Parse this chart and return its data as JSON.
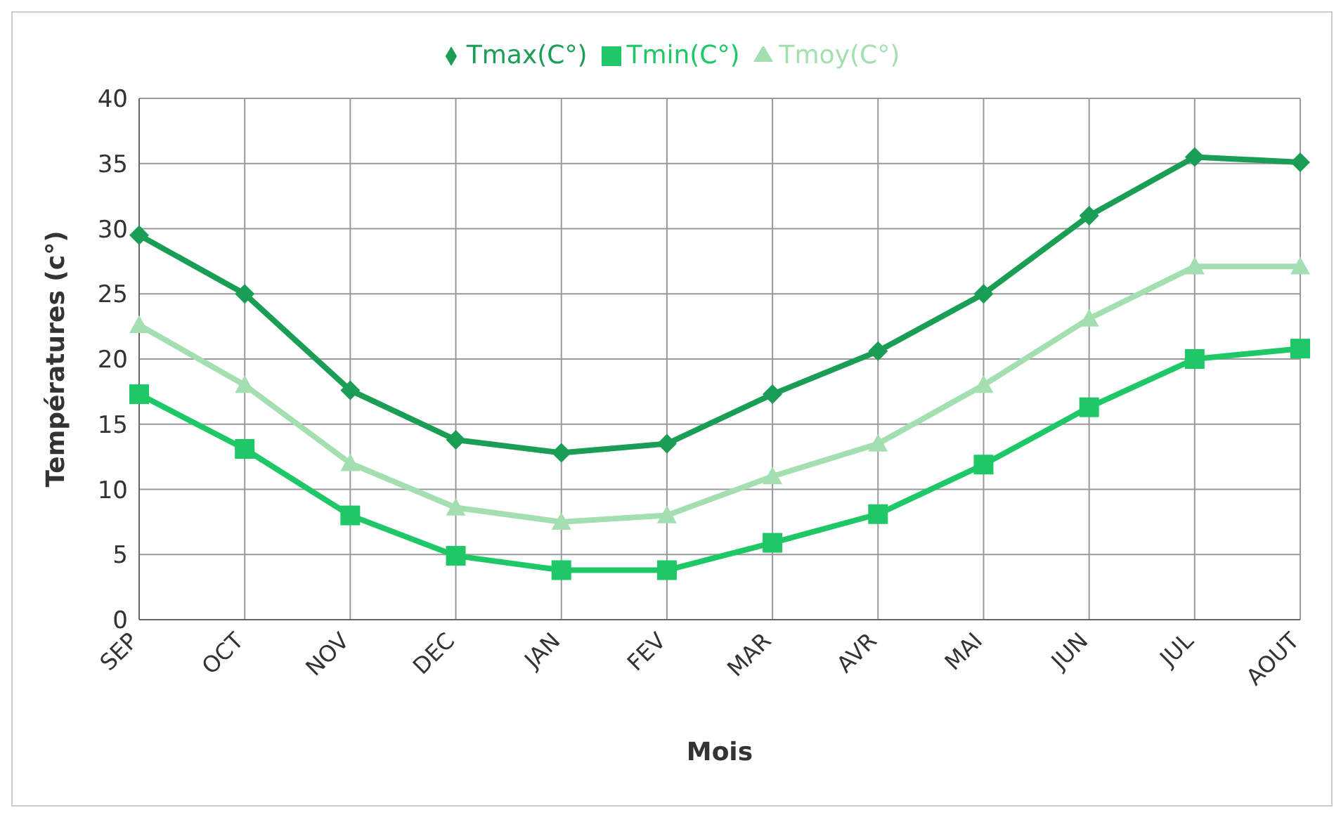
{
  "chart_data": {
    "type": "line",
    "xlabel": "Mois",
    "ylabel": "Températures (c°)",
    "categories": [
      "SEP",
      "OCT",
      "NOV",
      "DEC",
      "JAN",
      "FEV",
      "MAR",
      "AVR",
      "MAI",
      "JUN",
      "JUL",
      "AOUT"
    ],
    "series": [
      {
        "name": "Tmax(C°)",
        "color": "#1a9e55",
        "marker": "diamond",
        "values": [
          29.5,
          25,
          17.6,
          13.8,
          12.8,
          13.5,
          17.3,
          20.6,
          25,
          31,
          35.5,
          35.1
        ]
      },
      {
        "name": "Tmin(C°)",
        "color": "#1ec866",
        "marker": "square",
        "values": [
          17.3,
          13.1,
          8,
          4.9,
          3.8,
          3.8,
          5.9,
          8.1,
          11.9,
          16.3,
          20,
          20.8
        ]
      },
      {
        "name": "Tmoy(C°)",
        "color": "#a3dfb1",
        "marker": "triangle",
        "values": [
          22.6,
          18,
          12,
          8.6,
          7.5,
          8,
          11,
          13.5,
          18,
          23.1,
          27.1,
          27.1
        ]
      }
    ],
    "ylim": [
      0,
      40
    ],
    "yticks": [
      0,
      5,
      10,
      15,
      20,
      25,
      30,
      35,
      40
    ],
    "grid": true,
    "legend": "top"
  }
}
